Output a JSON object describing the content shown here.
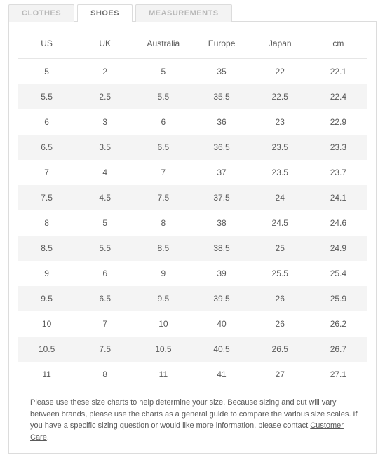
{
  "tabs": [
    {
      "label": "CLOTHES",
      "active": false
    },
    {
      "label": "SHOES",
      "active": true
    },
    {
      "label": "MEASUREMENTS",
      "active": false
    }
  ],
  "table": {
    "columns": [
      "US",
      "UK",
      "Australia",
      "Europe",
      "Japan",
      "cm"
    ],
    "rows": [
      [
        "5",
        "2",
        "5",
        "35",
        "22",
        "22.1"
      ],
      [
        "5.5",
        "2.5",
        "5.5",
        "35.5",
        "22.5",
        "22.4"
      ],
      [
        "6",
        "3",
        "6",
        "36",
        "23",
        "22.9"
      ],
      [
        "6.5",
        "3.5",
        "6.5",
        "36.5",
        "23.5",
        "23.3"
      ],
      [
        "7",
        "4",
        "7",
        "37",
        "23.5",
        "23.7"
      ],
      [
        "7.5",
        "4.5",
        "7.5",
        "37.5",
        "24",
        "24.1"
      ],
      [
        "8",
        "5",
        "8",
        "38",
        "24.5",
        "24.6"
      ],
      [
        "8.5",
        "5.5",
        "8.5",
        "38.5",
        "25",
        "24.9"
      ],
      [
        "9",
        "6",
        "9",
        "39",
        "25.5",
        "25.4"
      ],
      [
        "9.5",
        "6.5",
        "9.5",
        "39.5",
        "26",
        "25.9"
      ],
      [
        "10",
        "7",
        "10",
        "40",
        "26",
        "26.2"
      ],
      [
        "10.5",
        "7.5",
        "10.5",
        "40.5",
        "26.5",
        "26.7"
      ],
      [
        "11",
        "8",
        "11",
        "41",
        "27",
        "27.1"
      ]
    ],
    "row_shade_color": "#f4f4f4",
    "border_color": "#dcdcdc",
    "text_color": "#5a5a5a",
    "header_fontsize": 12,
    "cell_fontsize": 12
  },
  "footnote": {
    "text_before": "Please use these size charts to help determine your size. Because sizing and cut will vary between brands, please use the charts as a general guide to compare the various size scales. If you have a specific sizing question or would like more information, please contact ",
    "link_text": "Customer Care",
    "text_after": "."
  }
}
